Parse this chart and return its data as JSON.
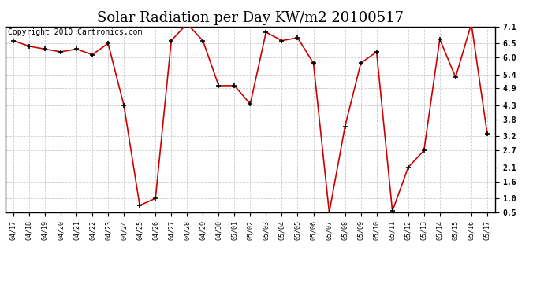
{
  "title": "Solar Radiation per Day KW/m2 20100517",
  "copyright_text": "Copyright 2010 Cartronics.com",
  "dates": [
    "04/17",
    "04/18",
    "04/19",
    "04/20",
    "04/21",
    "04/22",
    "04/23",
    "04/24",
    "04/25",
    "04/26",
    "04/27",
    "04/28",
    "04/29",
    "04/30",
    "05/01",
    "05/02",
    "05/03",
    "05/04",
    "05/05",
    "05/06",
    "05/07",
    "05/08",
    "05/09",
    "05/10",
    "05/11",
    "05/12",
    "05/13",
    "05/14",
    "05/15",
    "05/16",
    "05/17"
  ],
  "values": [
    6.6,
    6.4,
    6.3,
    6.2,
    6.3,
    6.1,
    6.5,
    4.3,
    0.75,
    1.0,
    6.6,
    7.2,
    6.6,
    5.0,
    5.0,
    4.35,
    6.9,
    6.6,
    6.7,
    5.8,
    0.5,
    3.55,
    5.8,
    6.2,
    0.55,
    2.1,
    2.7,
    6.65,
    5.3,
    7.2,
    3.3
  ],
  "line_color": "#cc0000",
  "marker_color": "#000000",
  "bg_color": "#ffffff",
  "grid_color": "#cccccc",
  "ylim_min": 0.5,
  "ylim_max": 7.1,
  "yticks": [
    0.5,
    1.0,
    1.6,
    2.1,
    2.7,
    3.2,
    3.8,
    4.3,
    4.9,
    5.4,
    6.0,
    6.5,
    7.1
  ],
  "title_fontsize": 13,
  "copyright_fontsize": 7,
  "tick_fontsize": 7,
  "xtick_fontsize": 6
}
